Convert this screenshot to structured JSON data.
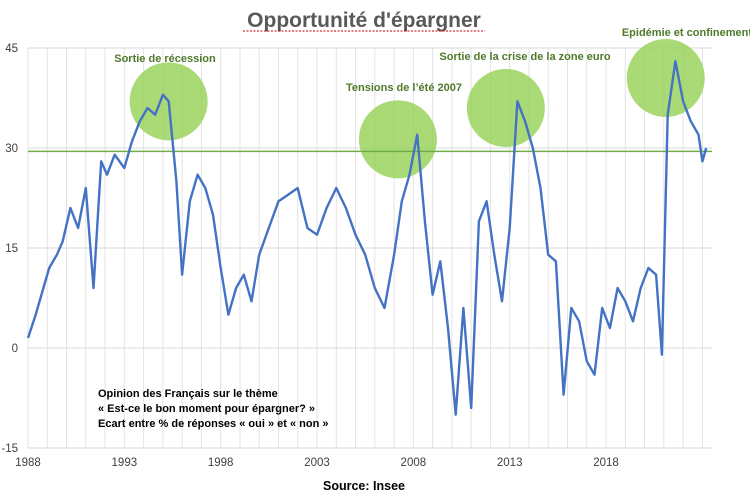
{
  "chart_data": {
    "type": "line",
    "title": "Opportunité d'épargner",
    "source": "Source: Insee",
    "ylim": [
      -15,
      45
    ],
    "xlim": [
      1988,
      2023.5
    ],
    "y_ticks": [
      "45",
      "30",
      "15",
      "0",
      "-15"
    ],
    "y_tick_values": [
      45,
      30,
      15,
      0,
      -15
    ],
    "x_ticks": [
      "1988",
      "1993",
      "1998",
      "2003",
      "2008",
      "2013",
      "2018"
    ],
    "x_tick_values": [
      1988,
      1993,
      1998,
      2003,
      2008,
      2013,
      2018
    ],
    "vertical_gridlines": true,
    "reference_line": {
      "y": 29.5,
      "color": "#70ad47"
    },
    "line_color": "#4472c4",
    "highlight_color": "#92d050",
    "note_lines": [
      "Opinion des Français sur le thème",
      "« Est-ce le bon moment pour épargner? »",
      "Ecart entre % de réponses « oui » et « non »"
    ],
    "annotations": [
      {
        "label": "Sortie de récession",
        "x": 1995.3,
        "y": 37
      },
      {
        "label": "Tensions de l’été 2007",
        "x": 2007.2,
        "y": 31.3
      },
      {
        "label": "Sortie de la crise de la zone euro",
        "x": 2012.8,
        "y": 36
      },
      {
        "label": "Epidémie et confinements",
        "x": 2021.1,
        "y": 40.5
      }
    ],
    "series": [
      {
        "x": [
          1988.0,
          1988.4,
          1988.8,
          1989.1,
          1989.5,
          1989.8,
          1990.2,
          1990.6,
          1991.0,
          1991.4,
          1991.8,
          1992.1,
          1992.5,
          1993.0,
          1993.4,
          1993.8,
          1994.2,
          1994.6,
          1995.0,
          1995.3,
          1995.7,
          1996.0,
          1996.4,
          1996.8,
          1997.2,
          1997.6,
          1998.0,
          1998.4,
          1998.8,
          1999.2,
          1999.6,
          2000.0,
          2000.5,
          2001.0,
          2001.5,
          2002.0,
          2002.5,
          2003.0,
          2003.5,
          2004.0,
          2004.5,
          2005.0,
          2005.5,
          2006.0,
          2006.5,
          2007.0,
          2007.4,
          2007.8,
          2008.2,
          2008.6,
          2009.0,
          2009.4,
          2009.8,
          2010.2,
          2010.6,
          2011.0,
          2011.4,
          2011.8,
          2012.2,
          2012.6,
          2013.0,
          2013.4,
          2013.8,
          2014.2,
          2014.6,
          2015.0,
          2015.4,
          2015.8,
          2016.2,
          2016.6,
          2017.0,
          2017.4,
          2017.8,
          2018.2,
          2018.6,
          2019.0,
          2019.4,
          2019.8,
          2020.2,
          2020.6,
          2020.9,
          2021.2,
          2021.6,
          2022.0,
          2022.4,
          2022.8,
          2023.0,
          2023.2
        ],
        "values": [
          1.5,
          5,
          9,
          12,
          14,
          16,
          21,
          18,
          24,
          9,
          28,
          26,
          29,
          27,
          31,
          34,
          36,
          35,
          38,
          37,
          25,
          11,
          22,
          26,
          24,
          20,
          12,
          5,
          9,
          11,
          7,
          14,
          18,
          22,
          23,
          24,
          18,
          17,
          21,
          24,
          21,
          17,
          14,
          9,
          6,
          14,
          22,
          26,
          32,
          19,
          8,
          13,
          3,
          -10,
          6,
          -9,
          19,
          22,
          14,
          7,
          18,
          37,
          34,
          30,
          24,
          14,
          13,
          -7,
          6,
          4,
          -2,
          -4,
          6,
          3,
          9,
          7,
          4,
          9,
          12,
          11,
          -1,
          35,
          43,
          37,
          34,
          32,
          28,
          30
        ]
      }
    ]
  }
}
